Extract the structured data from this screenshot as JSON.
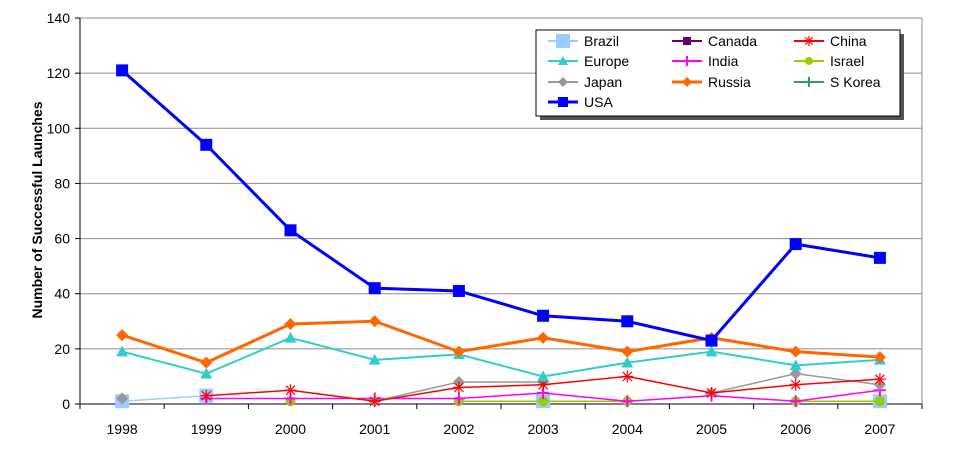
{
  "chart_data": {
    "type": "line",
    "title": "",
    "xlabel": "",
    "ylabel": "Number of Successful Launches",
    "ylim": [
      0,
      140
    ],
    "yticks": [
      0,
      20,
      40,
      60,
      80,
      100,
      120,
      140
    ],
    "grid": true,
    "legend_position": "top-right",
    "x": [
      "1998",
      "1999",
      "2000",
      "2001",
      "2002",
      "2003",
      "2004",
      "2005",
      "2006",
      "2007"
    ],
    "series": [
      {
        "name": "Brazil",
        "color": "#99ccff",
        "marker": "square",
        "values": [
          1,
          3,
          null,
          null,
          null,
          1,
          null,
          null,
          null,
          1
        ]
      },
      {
        "name": "Canada",
        "color": "#660066",
        "marker": "square-small",
        "values": [
          null,
          null,
          null,
          null,
          null,
          null,
          null,
          null,
          null,
          null
        ]
      },
      {
        "name": "China",
        "color": "#ff0000",
        "marker": "asterisk",
        "values": [
          null,
          3,
          5,
          1,
          6,
          7,
          10,
          4,
          7,
          9
        ]
      },
      {
        "name": "Europe",
        "color": "#33cccc",
        "marker": "triangle",
        "values": [
          19,
          11,
          24,
          16,
          18,
          10,
          15,
          19,
          14,
          16
        ]
      },
      {
        "name": "India",
        "color": "#ff00ff",
        "marker": "plus",
        "values": [
          null,
          2,
          2,
          2,
          2,
          4,
          1,
          3,
          1,
          5
        ]
      },
      {
        "name": "Israel",
        "color": "#99cc00",
        "marker": "circle",
        "values": [
          null,
          null,
          1,
          null,
          1,
          1,
          1,
          null,
          1,
          1
        ]
      },
      {
        "name": "Japan",
        "color": "#999999",
        "marker": "diamond",
        "values": [
          2,
          null,
          null,
          1,
          8,
          8,
          null,
          4,
          11,
          7
        ]
      },
      {
        "name": "Russia",
        "color": "#ff6600",
        "marker": "diamond",
        "values": [
          25,
          15,
          29,
          30,
          19,
          24,
          19,
          24,
          19,
          17
        ]
      },
      {
        "name": "S Korea",
        "color": "#339966",
        "marker": "plus",
        "values": [
          null,
          null,
          null,
          null,
          null,
          null,
          null,
          null,
          null,
          null
        ]
      },
      {
        "name": "USA",
        "color": "#0000ff",
        "marker": "square",
        "values": [
          121,
          94,
          63,
          42,
          41,
          32,
          30,
          23,
          58,
          53
        ]
      }
    ]
  }
}
